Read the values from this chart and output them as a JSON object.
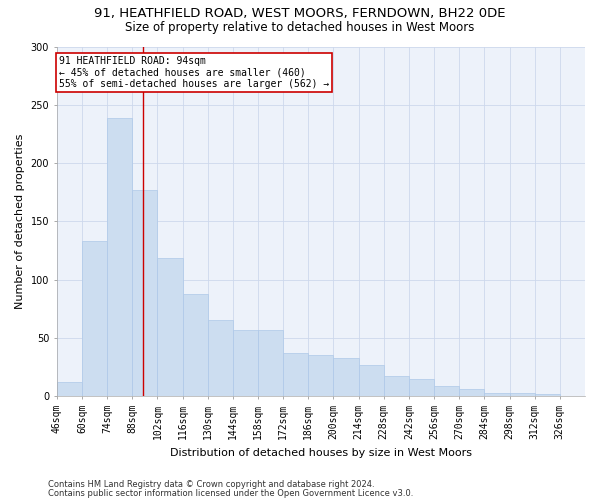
{
  "title1": "91, HEATHFIELD ROAD, WEST MOORS, FERNDOWN, BH22 0DE",
  "title2": "Size of property relative to detached houses in West Moors",
  "xlabel": "Distribution of detached houses by size in West Moors",
  "ylabel": "Number of detached properties",
  "bar_labels": [
    "46sqm",
    "60sqm",
    "74sqm",
    "88sqm",
    "102sqm",
    "116sqm",
    "130sqm",
    "144sqm",
    "158sqm",
    "172sqm",
    "186sqm",
    "200sqm",
    "214sqm",
    "228sqm",
    "242sqm",
    "256sqm",
    "270sqm",
    "284sqm",
    "298sqm",
    "312sqm",
    "326sqm"
  ],
  "bar_heights": [
    12,
    133,
    239,
    177,
    119,
    88,
    65,
    57,
    57,
    37,
    35,
    33,
    27,
    17,
    15,
    9,
    6,
    3,
    3,
    2,
    0
  ],
  "bar_color": "#ccddf0",
  "bar_edge_color": "#aec8e8",
  "vline_x_data": 94,
  "bin_edges": [
    46,
    60,
    74,
    88,
    102,
    116,
    130,
    144,
    158,
    172,
    186,
    200,
    214,
    228,
    242,
    256,
    270,
    284,
    298,
    312,
    326,
    340
  ],
  "annotation_text": "91 HEATHFIELD ROAD: 94sqm\n← 45% of detached houses are smaller (460)\n55% of semi-detached houses are larger (562) →",
  "annotation_box_color": "#ffffff",
  "annotation_edge_color": "#cc0000",
  "footnote1": "Contains HM Land Registry data © Crown copyright and database right 2024.",
  "footnote2": "Contains public sector information licensed under the Open Government Licence v3.0.",
  "ylim": [
    0,
    300
  ],
  "grid_color": "#cdd8ec",
  "background_color": "#edf2fa",
  "vline_color": "#cc0000",
  "title_fontsize": 9.5,
  "subtitle_fontsize": 8.5,
  "tick_fontsize": 7,
  "ylabel_fontsize": 8,
  "xlabel_fontsize": 8,
  "footnote_fontsize": 6,
  "annot_fontsize": 7
}
